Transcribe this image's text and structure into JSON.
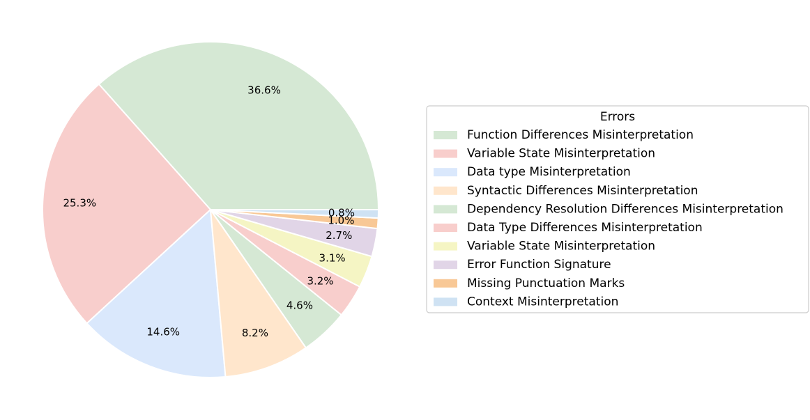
{
  "chart_data": {
    "type": "pie",
    "start_angle_deg": 0,
    "direction": "counterclockwise",
    "slice_edge_color": "#ffffff",
    "slices": [
      {
        "label": "Function Differences Misinterpretation",
        "value": 36.6,
        "pct_label": "36.6%",
        "color": "#d5e8d4"
      },
      {
        "label": "Variable State Misinterpretation",
        "value": 25.3,
        "pct_label": "25.3%",
        "color": "#f8cecc"
      },
      {
        "label": "Data type Misinterpretation",
        "value": 14.6,
        "pct_label": "14.6%",
        "color": "#dae8fc"
      },
      {
        "label": "Syntactic Differences Misinterpretation",
        "value": 8.2,
        "pct_label": "8.2%",
        "color": "#ffe6cc"
      },
      {
        "label": "Dependency Resolution Differences Misinterpretation",
        "value": 4.6,
        "pct_label": "4.6%",
        "color": "#d5e8d4"
      },
      {
        "label": "Data Type Differences Misinterpretation",
        "value": 3.2,
        "pct_label": "3.2%",
        "color": "#f8cecc"
      },
      {
        "label": "Variable State Misinterpretation",
        "value": 3.1,
        "pct_label": "3.1%",
        "color": "#f5f5c4"
      },
      {
        "label": "Error Function Signature",
        "value": 2.7,
        "pct_label": "2.7%",
        "color": "#e1d5e7"
      },
      {
        "label": "Missing Punctuation Marks",
        "value": 1.0,
        "pct_label": "1.0%",
        "color": "#f8c896"
      },
      {
        "label": "Context Misinterpretation",
        "value": 0.8,
        "pct_label": "0.8%",
        "color": "#cfe2f3"
      }
    ],
    "legend": {
      "title": "Errors",
      "placement": "right"
    }
  }
}
